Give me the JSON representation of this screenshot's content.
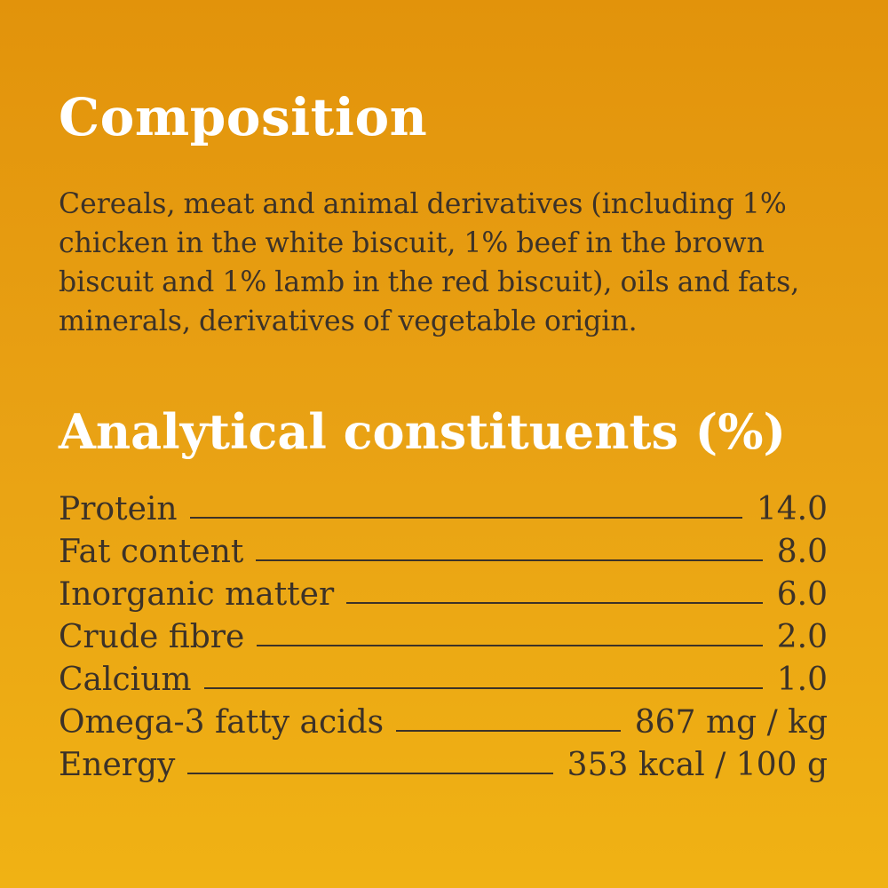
{
  "composition": {
    "title": "Composition",
    "text": "Cereals, meat and animal derivatives (including 1% chicken in the white biscuit, 1% beef in the brown biscuit and 1% lamb in the red biscuit), oils and fats, minerals, derivatives of vegetable origin."
  },
  "analytical": {
    "title": "Analytical constituents (%)",
    "rows": [
      {
        "label": "Protein",
        "value": "14.0"
      },
      {
        "label": "Fat content",
        "value": "8.0"
      },
      {
        "label": "Inorganic matter",
        "value": "6.0"
      },
      {
        "label": "Crude fibre",
        "value": "2.0"
      },
      {
        "label": "Calcium",
        "value": "1.0"
      },
      {
        "label": "Omega-3 fatty acids",
        "value": "867 mg / kg"
      },
      {
        "label": "Energy",
        "value": "353 kcal / 100 g"
      }
    ]
  },
  "colors": {
    "background_top": "#e2930b",
    "background_bottom": "#f0b214",
    "heading": "#ffffff",
    "body_text": "#3c3228"
  }
}
